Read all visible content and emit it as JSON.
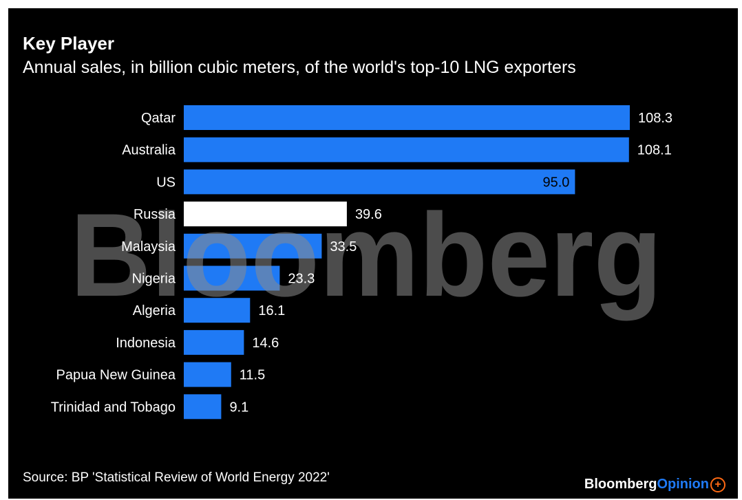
{
  "header": {
    "title": "Key Player",
    "subtitle": "Annual sales, in billion cubic meters, of the world's top-10 LNG exporters"
  },
  "footer": {
    "source": "Source: BP 'Statistical Review of World Energy 2022'",
    "brand_part1": "Bloomberg",
    "brand_part2": "Opinion"
  },
  "watermark": "Bloomberg",
  "colors": {
    "background": "#000000",
    "bar": "#1f7af5",
    "highlight_bar": "#ffffff",
    "text": "#ffffff",
    "accent_plus": "#ff6a13"
  },
  "chart_data": {
    "type": "bar",
    "orientation": "horizontal",
    "title": "Key Player",
    "subtitle": "Annual sales, in billion cubic meters, of the world's top-10 LNG exporters",
    "categories": [
      "Qatar",
      "Australia",
      "US",
      "Russia",
      "Malaysia",
      "Nigeria",
      "Algeria",
      "Indonesia",
      "Papua New Guinea",
      "Trinidad and Tobago"
    ],
    "values": [
      108.3,
      108.1,
      95.0,
      39.6,
      33.5,
      23.3,
      16.1,
      14.6,
      11.5,
      9.1
    ],
    "value_labels": [
      "108.3",
      "108.1",
      "95.0",
      "39.6",
      "33.5",
      "23.3",
      "16.1",
      "14.6",
      "11.5",
      "9.1"
    ],
    "highlight": "Russia",
    "xlim": [
      0,
      108.3
    ],
    "grid": false,
    "legend": "none"
  }
}
